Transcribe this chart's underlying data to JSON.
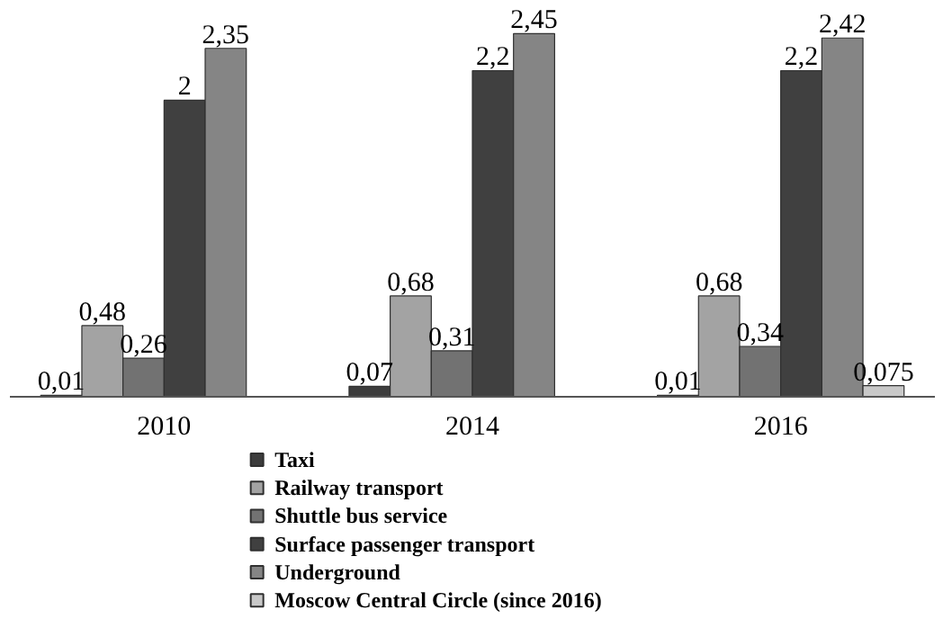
{
  "chart_data": {
    "type": "bar",
    "categories": [
      "2010",
      "2014",
      "2016"
    ],
    "series": [
      {
        "name": "Taxi",
        "color": "#3c3c3c",
        "values": [
          0.01,
          0.07,
          0.01
        ],
        "value_labels": [
          "0,01",
          "0,07",
          "0,01"
        ]
      },
      {
        "name": "Railway transport",
        "color": "#a3a3a3",
        "values": [
          0.48,
          0.68,
          0.68
        ],
        "value_labels": [
          "0,48",
          "0,68",
          "0,68"
        ]
      },
      {
        "name": "Shuttle bus service",
        "color": "#727272",
        "values": [
          0.26,
          0.31,
          0.34
        ],
        "value_labels": [
          "0,26",
          "0,31",
          "0,34"
        ]
      },
      {
        "name": "Surface passenger transport",
        "color": "#404040",
        "values": [
          2,
          2.2,
          2.2
        ],
        "value_labels": [
          "2",
          "2,2",
          "2,2"
        ]
      },
      {
        "name": "Underground",
        "color": "#858585",
        "values": [
          2.35,
          2.45,
          2.42
        ],
        "value_labels": [
          "2,35",
          "2,45",
          "2,42"
        ]
      },
      {
        "name": "Moscow Central Circle (since 2016)",
        "color": "#c8c8c8",
        "values": [
          null,
          null,
          0.075
        ],
        "value_labels": [
          null,
          null,
          "0,075"
        ]
      }
    ],
    "tick_labels": "x",
    "grid": false,
    "legend": "bottom"
  }
}
